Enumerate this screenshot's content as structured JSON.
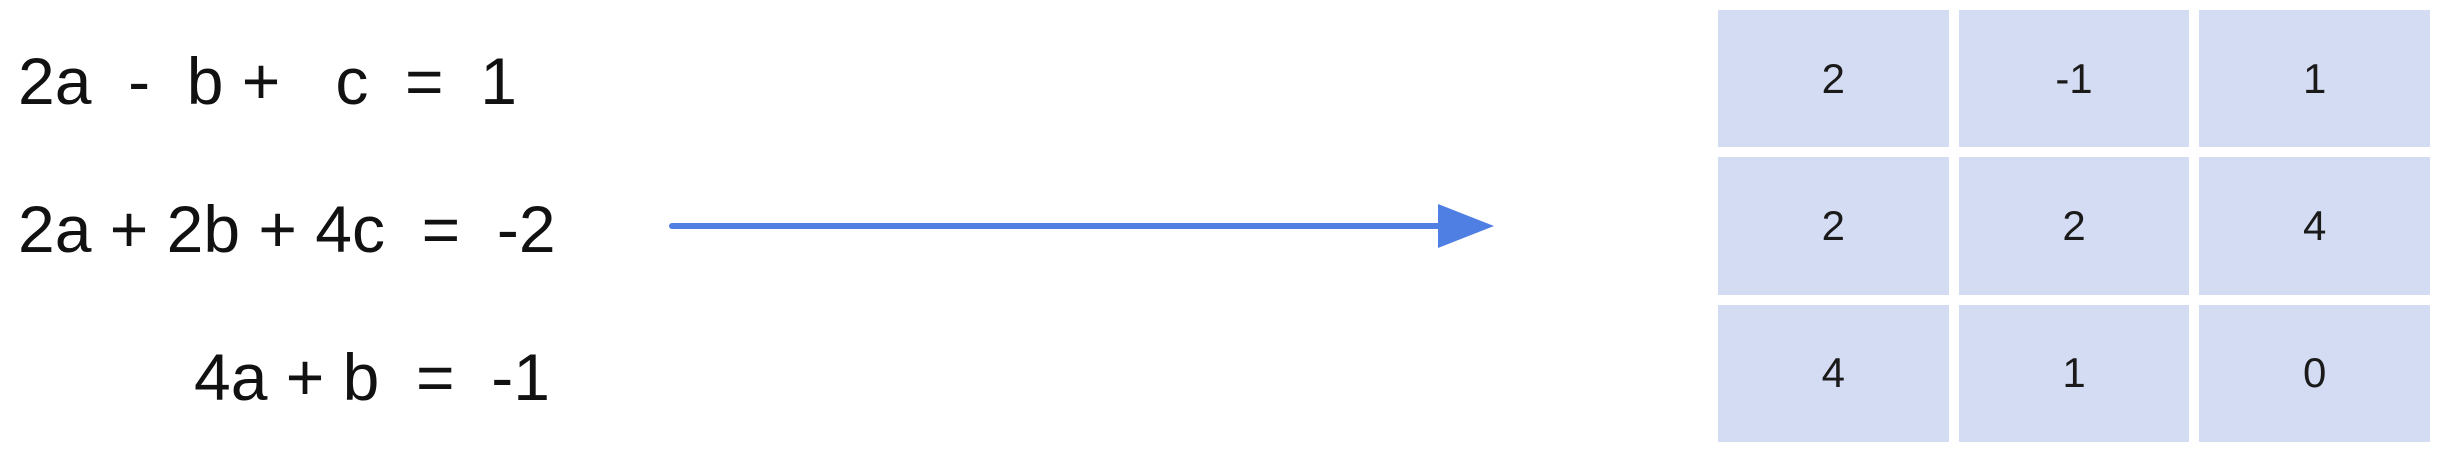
{
  "equations": [
    "2a  -  b +   c  =  1",
    "2a + 2b + 4c  =  -2",
    "4a + b  =  -1"
  ],
  "arrow": {
    "color": "#4f7fe3"
  },
  "matrix": {
    "rows": [
      [
        "2",
        "-1",
        "1"
      ],
      [
        "2",
        "2",
        "4"
      ],
      [
        "4",
        "1",
        "0"
      ]
    ],
    "cell_color": "#d3dcf2"
  }
}
